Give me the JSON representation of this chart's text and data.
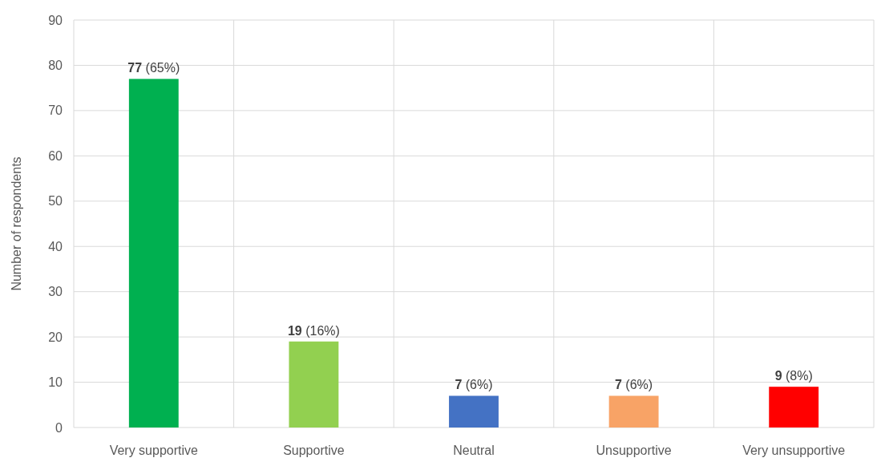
{
  "chart_data": {
    "type": "bar",
    "ylabel": "Number of respondents",
    "categories": [
      "Very supportive",
      "Supportive",
      "Neutral",
      "Unsupportive",
      "Very unsupportive"
    ],
    "values": [
      77,
      19,
      7,
      7,
      9
    ],
    "colors": [
      "#00b050",
      "#92d050",
      "#4472c4",
      "#f8a366",
      "#ff0000"
    ],
    "value_labels": [
      "77 (65%)",
      "19 (16%)",
      "7 (6%)",
      "7 (6%)",
      "9 (8%)"
    ],
    "ylim": [
      0,
      90
    ],
    "yticks": [
      0,
      10,
      20,
      30,
      40,
      50,
      60,
      70,
      80,
      90
    ],
    "grid": true
  }
}
